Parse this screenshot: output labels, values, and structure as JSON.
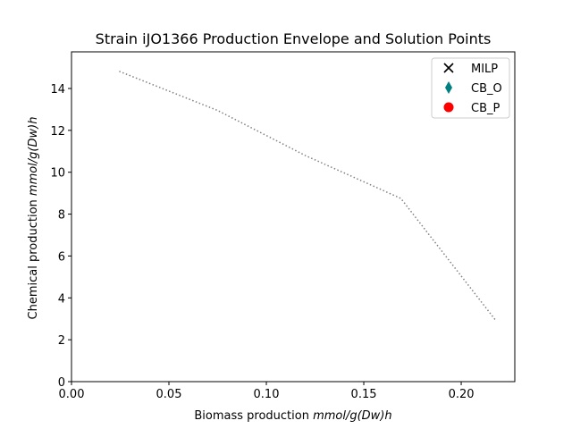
{
  "chart_data": {
    "type": "scatter",
    "title": "Strain iJO1366 Production Envelope and Solution Points",
    "xlabel_plain": "Biomass production ",
    "xlabel_math": "mmol/g(Dw)h",
    "ylabel_plain": "Chemical production ",
    "ylabel_math": "mmol/g(Dw)h",
    "xlim": [
      0.0,
      0.2275
    ],
    "ylim": [
      0,
      15.75
    ],
    "xticks": [
      0.0,
      0.05,
      0.1,
      0.15,
      0.2
    ],
    "xtick_labels": [
      "0.00",
      "0.05",
      "0.10",
      "0.15",
      "0.20"
    ],
    "yticks": [
      0,
      2,
      4,
      6,
      8,
      10,
      12,
      14
    ],
    "ytick_labels": [
      "0",
      "2",
      "4",
      "6",
      "8",
      "10",
      "12",
      "14"
    ],
    "grid": false,
    "legend_position": "top-right",
    "envelope": {
      "style": "dotted",
      "color": "#808080",
      "x": [
        0.0245,
        0.075,
        0.12,
        0.169,
        0.2175
      ],
      "y": [
        14.82,
        12.95,
        10.8,
        8.75,
        2.95
      ]
    },
    "series": [
      {
        "name": "MILP",
        "marker": "x",
        "color": "#000000",
        "x": [],
        "y": []
      },
      {
        "name": "CB_O",
        "marker": "thin_diamond",
        "color": "#008080",
        "x": [],
        "y": []
      },
      {
        "name": "CB_P",
        "marker": "circle",
        "color": "#ff0000",
        "x": [],
        "y": []
      }
    ]
  }
}
